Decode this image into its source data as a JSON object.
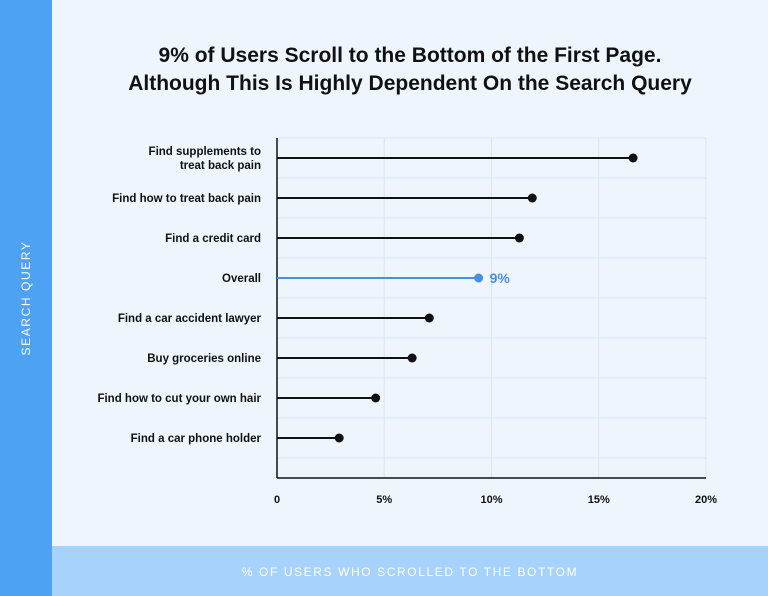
{
  "title_line1": "9% of Users Scroll to the Bottom of the First Page.",
  "title_line2": "Although This Is Highly Dependent On the Search Query",
  "chart_data": {
    "type": "lollipop",
    "title": "9% of Users Scroll to the Bottom of the First Page. Although This Is Highly Dependent On the Search Query",
    "xlabel": "% OF USERS WHO SCROLLED TO THE BOTTOM",
    "ylabel": "SEARCH QUERY",
    "xlim": [
      0,
      20
    ],
    "xticks": [
      "0",
      "5%",
      "10%",
      "15%",
      "20%"
    ],
    "grid": true,
    "orientation": "horizontal",
    "highlight_color": "#4a8ee6",
    "default_color": "#111111",
    "categories": [
      [
        "Find supplements to",
        "treat back pain"
      ],
      [
        "Find how to treat back pain"
      ],
      [
        "Find a credit card"
      ],
      [
        "Overall"
      ],
      [
        "Find a car accident lawyer"
      ],
      [
        "Buy groceries online"
      ],
      [
        "Find how to cut your own hair"
      ],
      [
        "Find a car phone holder"
      ]
    ],
    "values": [
      16.6,
      11.9,
      11.3,
      9.4,
      7.1,
      6.3,
      4.6,
      2.9
    ],
    "highlight_index": 3,
    "highlight_label": "9%"
  }
}
